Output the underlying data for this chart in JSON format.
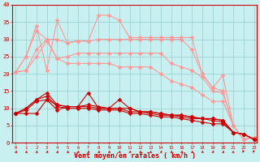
{
  "xlabel": "Vent moyen/en rafales ( km/h )",
  "background_color": "#c8f0f0",
  "grid_color": "#99cccc",
  "x_ticks": [
    0,
    1,
    2,
    3,
    4,
    5,
    6,
    7,
    8,
    9,
    10,
    11,
    12,
    13,
    14,
    15,
    16,
    17,
    18,
    19,
    20,
    21,
    22,
    23
  ],
  "ylim": [
    0,
    40
  ],
  "xlim": [
    -0.3,
    23.3
  ],
  "series_light": [
    [
      20.5,
      25.0,
      34.0,
      21.0,
      35.5,
      29.0,
      29.5,
      29.5,
      37.0,
      37.0,
      35.5,
      30.5,
      30.5,
      30.5,
      30.5,
      30.5,
      30.5,
      30.5,
      20.0,
      16.0,
      19.5,
      5.0,
      1.0,
      1.5
    ],
    [
      20.5,
      25.0,
      32.5,
      30.0,
      30.0,
      29.0,
      29.5,
      29.5,
      30.0,
      30.0,
      30.0,
      30.0,
      30.0,
      30.0,
      30.0,
      30.0,
      30.0,
      27.0,
      20.0,
      16.0,
      15.0,
      5.0,
      1.0,
      1.5
    ],
    [
      20.5,
      21.0,
      27.0,
      30.0,
      24.5,
      25.0,
      26.0,
      26.0,
      26.0,
      26.0,
      26.0,
      26.0,
      26.0,
      26.0,
      26.0,
      23.0,
      22.0,
      21.0,
      19.0,
      15.0,
      14.5,
      5.0,
      1.0,
      1.5
    ],
    [
      20.5,
      21.0,
      25.0,
      29.5,
      24.5,
      23.0,
      23.0,
      23.0,
      23.0,
      23.0,
      22.0,
      22.0,
      22.0,
      22.0,
      20.0,
      18.0,
      17.0,
      16.0,
      14.0,
      12.0,
      12.0,
      5.0,
      1.0,
      1.5
    ]
  ],
  "series_dark": [
    [
      8.5,
      8.5,
      8.5,
      12.5,
      9.5,
      10.5,
      10.5,
      14.5,
      10.0,
      10.0,
      12.5,
      10.0,
      9.0,
      9.0,
      8.5,
      8.0,
      8.0,
      7.5,
      7.0,
      7.0,
      6.5,
      3.0,
      2.5,
      1.0
    ],
    [
      8.5,
      9.5,
      12.0,
      12.5,
      11.0,
      10.5,
      10.5,
      11.0,
      10.5,
      10.0,
      10.0,
      10.0,
      9.0,
      9.0,
      8.5,
      8.0,
      8.0,
      7.5,
      7.0,
      7.0,
      6.5,
      3.0,
      2.5,
      1.0
    ],
    [
      8.5,
      10.0,
      12.5,
      14.5,
      11.0,
      10.5,
      10.5,
      10.5,
      10.0,
      10.0,
      10.0,
      9.0,
      9.0,
      8.5,
      8.0,
      8.0,
      7.5,
      7.0,
      7.0,
      6.5,
      6.0,
      3.0,
      2.5,
      1.0
    ],
    [
      8.5,
      10.0,
      12.5,
      13.5,
      10.5,
      10.0,
      10.0,
      10.0,
      9.5,
      9.5,
      9.5,
      8.5,
      8.5,
      8.0,
      7.5,
      7.5,
      7.0,
      6.5,
      6.0,
      5.5,
      5.5,
      3.0,
      2.5,
      1.0
    ]
  ],
  "light_color": "#ff9999",
  "dark_color": "#cc0000",
  "marker_size_light": 2.5,
  "marker_size_dark": 2.5,
  "linewidth": 0.8,
  "xlabel_color": "#cc0000",
  "tick_color": "#cc0000",
  "axis_color": "#cc0000",
  "yticks": [
    0,
    5,
    10,
    15,
    20,
    25,
    30,
    35,
    40
  ]
}
